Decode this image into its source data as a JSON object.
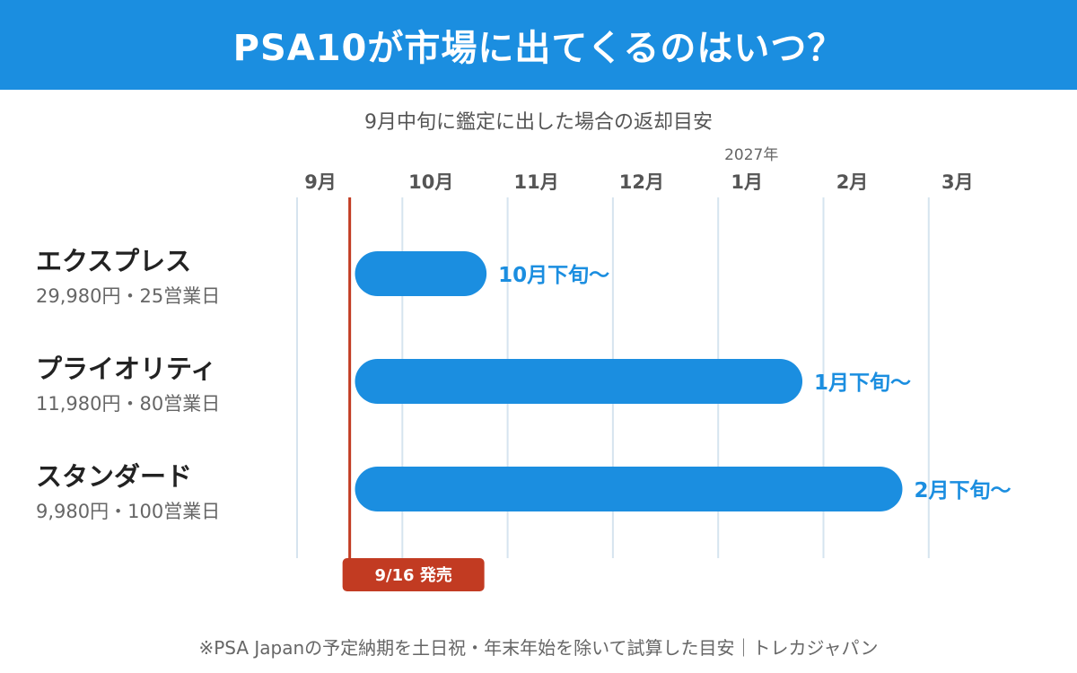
{
  "header": {
    "title": "PSA10が市場に出てくるのはいつ？"
  },
  "subtitle": "9月中旬に鑑定に出した場合の返却目安",
  "footer": "※PSA Japanの予定納期を土日祝・年末年始を除いて試算した目安｜トレカジャパン",
  "colors": {
    "header": "#1b8ee0",
    "bar": "#1b8ee0",
    "bar_label": "#1b8ee0",
    "release_line": "#c23b22",
    "gridline": "#d6e4ef"
  },
  "chart_data": {
    "type": "bar",
    "orientation": "horizontal-timeline",
    "x_axis": {
      "ticks": [
        "9月",
        "10月",
        "11月",
        "12月",
        "1月",
        "2月",
        "3月"
      ],
      "year_annotation": {
        "text": "2027年",
        "at_tick": "1月"
      },
      "range_months": [
        0,
        6
      ],
      "grid": true
    },
    "release_marker": {
      "label": "9/16 発売",
      "x_month": 0.5
    },
    "series": [
      {
        "name": "エクスプレス",
        "detail": "29,980円・25営業日",
        "start_month": 0.55,
        "end_month": 1.8,
        "label": "10月下旬〜"
      },
      {
        "name": "プライオリティ",
        "detail": "11,980円・80営業日",
        "start_month": 0.55,
        "end_month": 4.8,
        "label": "1月下旬〜"
      },
      {
        "name": "スタンダード",
        "detail": "9,980円・100営業日",
        "start_month": 0.55,
        "end_month": 5.75,
        "label": "2月下旬〜"
      }
    ]
  }
}
